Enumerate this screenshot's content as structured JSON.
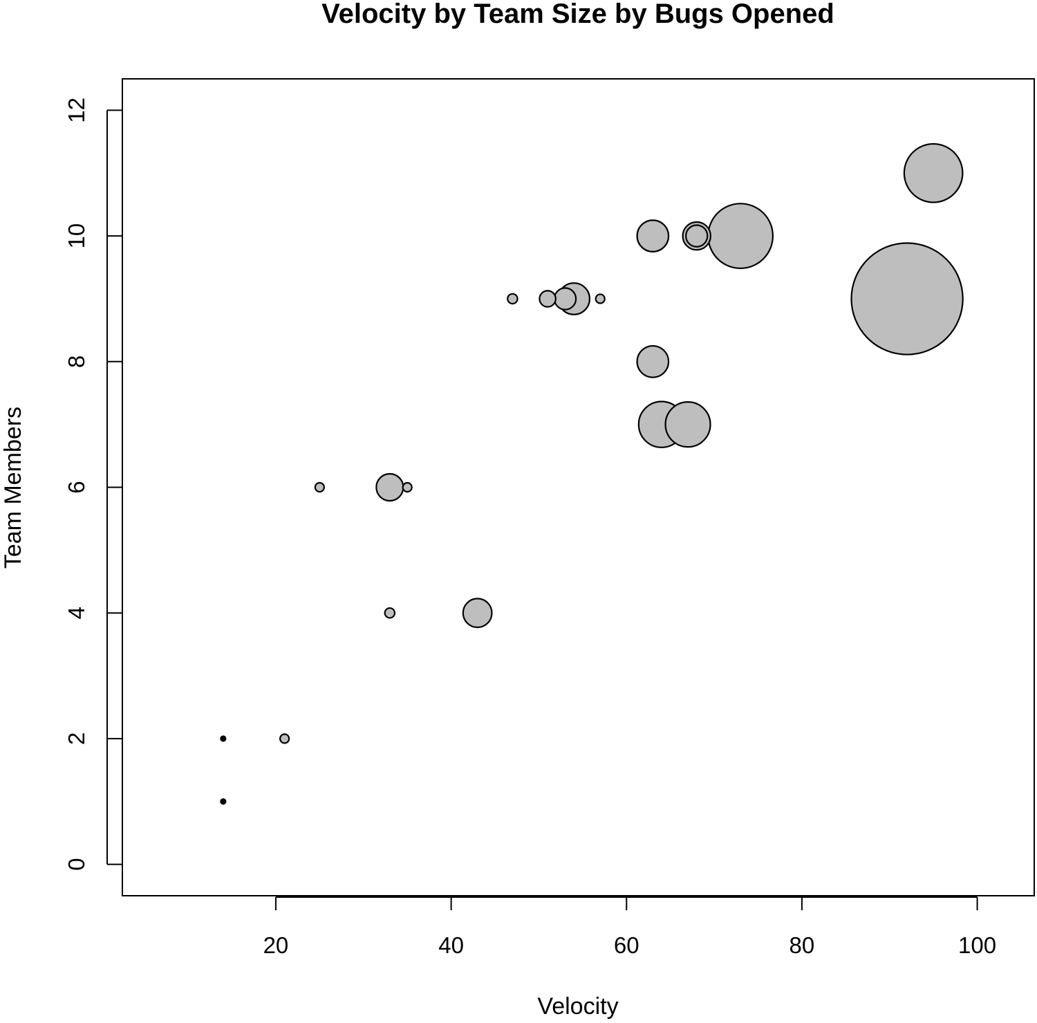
{
  "chart_data": {
    "type": "scatter",
    "title": "Velocity by Team Size by Bugs Opened",
    "xlabel": "Velocity",
    "ylabel": "Team Members",
    "xlim": [
      2.5,
      106.5
    ],
    "ylim": [
      -0.5,
      12.5
    ],
    "x_ticks": [
      20,
      40,
      60,
      80,
      100
    ],
    "y_ticks": [
      0,
      2,
      4,
      6,
      8,
      10,
      12
    ],
    "grid": false,
    "bubble_color": "#bebebe",
    "bubble_edge_color": "#000000",
    "points": [
      {
        "x": 14,
        "y": 1,
        "size": 0
      },
      {
        "x": 14,
        "y": 2,
        "size": 0
      },
      {
        "x": 21,
        "y": 2,
        "size": 1
      },
      {
        "x": 25,
        "y": 6,
        "size": 1
      },
      {
        "x": 33,
        "y": 6,
        "size": 3
      },
      {
        "x": 35,
        "y": 6,
        "size": 1
      },
      {
        "x": 33,
        "y": 4,
        "size": 1.1
      },
      {
        "x": 43,
        "y": 4,
        "size": 3.2
      },
      {
        "x": 47,
        "y": 9,
        "size": 1.1
      },
      {
        "x": 51,
        "y": 9,
        "size": 1.8
      },
      {
        "x": 53,
        "y": 9,
        "size": 2.4
      },
      {
        "x": 54,
        "y": 9,
        "size": 3.5
      },
      {
        "x": 57,
        "y": 9,
        "size": 1
      },
      {
        "x": 63,
        "y": 8,
        "size": 3.5
      },
      {
        "x": 63,
        "y": 10,
        "size": 3.5
      },
      {
        "x": 68,
        "y": 10,
        "size": 3.1
      },
      {
        "x": 68,
        "y": 10,
        "size": 2.4
      },
      {
        "x": 73,
        "y": 10,
        "size": 7.2
      },
      {
        "x": 64,
        "y": 7,
        "size": 5.1
      },
      {
        "x": 67,
        "y": 7,
        "size": 5.0
      },
      {
        "x": 92,
        "y": 9,
        "size": 12.4
      },
      {
        "x": 95,
        "y": 11,
        "size": 6.5
      }
    ]
  }
}
